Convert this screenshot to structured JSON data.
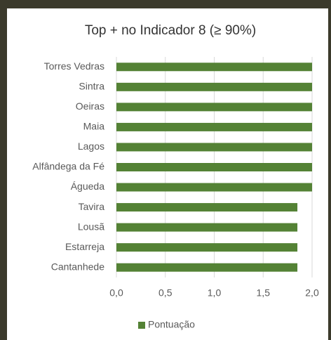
{
  "chart_data": {
    "type": "bar",
    "orientation": "horizontal",
    "title": "Top + no Indicador 8 (≥ 90%)",
    "categories": [
      "Torres Vedras",
      "Sintra",
      "Oeiras",
      "Maia",
      "Lagos",
      "Alfândega da Fé",
      "Águeda",
      "Tavira",
      "Lousã",
      "Estarreja",
      "Cantanhede"
    ],
    "series": [
      {
        "name": "Pontuação",
        "color": "#548235",
        "values": [
          2,
          2,
          2,
          2,
          2,
          2,
          2,
          1.85,
          1.85,
          1.85,
          1.85
        ]
      }
    ],
    "xlim": [
      0,
      2
    ],
    "xticks": [
      {
        "value": 0,
        "label": "0,0"
      },
      {
        "value": 0.5,
        "label": "0,5"
      },
      {
        "value": 1,
        "label": "1,0"
      },
      {
        "value": 1.5,
        "label": "1,5"
      },
      {
        "value": 2,
        "label": "2,0"
      }
    ],
    "grid": true,
    "legend": "bottom"
  }
}
